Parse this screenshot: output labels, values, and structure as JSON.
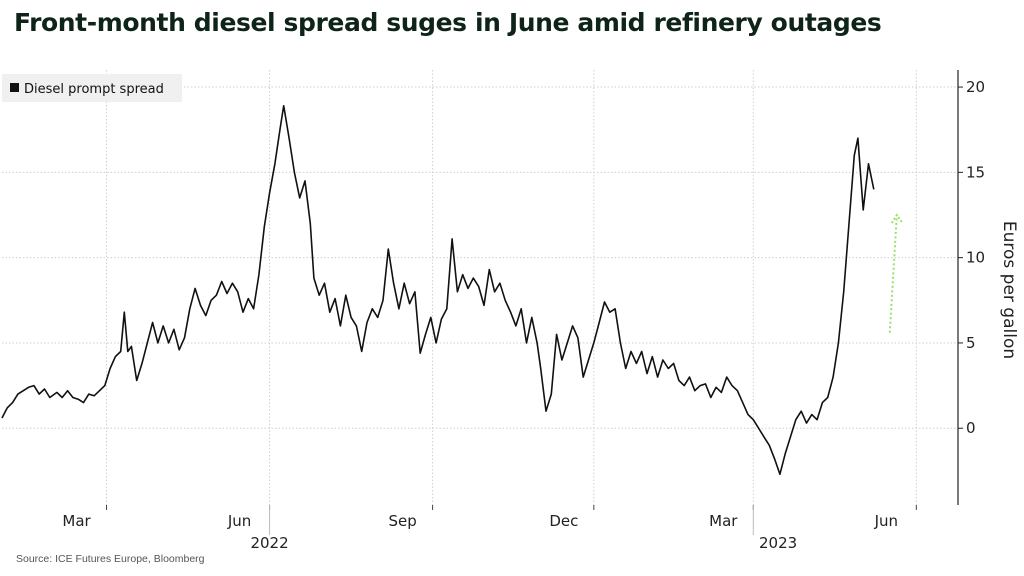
{
  "header": {
    "title": "Front-month diesel spread suges in June amid refinery outages"
  },
  "footer": {
    "source": "Source: ICE Futures Europe, Bloomberg"
  },
  "colors": {
    "line": "#111111",
    "grid": "#cfcfcf",
    "arrow": "#9be06a",
    "legend_bg": "#f0f0f0"
  },
  "chart_data": {
    "type": "line",
    "ylabel": "Euros per gallon",
    "ylim": [
      -4.5,
      21
    ],
    "yticks": [
      0,
      5,
      10,
      15,
      20
    ],
    "y_axis_side": "right",
    "grid": true,
    "legend_position": "top-left",
    "x_range": [
      "2022-01-01",
      "2023-06-20"
    ],
    "month_ticks": [
      {
        "date": "2022-03-01",
        "label": "Mar"
      },
      {
        "date": "2022-06-01",
        "label": "Jun"
      },
      {
        "date": "2022-09-01",
        "label": "Sep"
      },
      {
        "date": "2022-12-01",
        "label": "Dec"
      },
      {
        "date": "2023-03-01",
        "label": "Mar"
      },
      {
        "date": "2023-06-01",
        "label": "Jun"
      }
    ],
    "year_labels": [
      {
        "date": "2022-06-01",
        "label": "2022"
      },
      {
        "date": "2023-03-15",
        "label": "2023"
      }
    ],
    "annotation": {
      "type": "arrow",
      "from": [
        "2023-05-17",
        5.6
      ],
      "to": [
        "2023-05-21",
        12.5
      ]
    },
    "series": [
      {
        "name": "Diesel prompt spread",
        "points": [
          [
            "2022-01-01",
            0.6
          ],
          [
            "2022-01-04",
            1.2
          ],
          [
            "2022-01-07",
            1.5
          ],
          [
            "2022-01-10",
            2.0
          ],
          [
            "2022-01-13",
            2.2
          ],
          [
            "2022-01-16",
            2.4
          ],
          [
            "2022-01-19",
            2.5
          ],
          [
            "2022-01-22",
            2.0
          ],
          [
            "2022-01-25",
            2.3
          ],
          [
            "2022-01-28",
            1.8
          ],
          [
            "2022-02-01",
            2.1
          ],
          [
            "2022-02-04",
            1.8
          ],
          [
            "2022-02-07",
            2.2
          ],
          [
            "2022-02-10",
            1.8
          ],
          [
            "2022-02-13",
            1.7
          ],
          [
            "2022-02-16",
            1.5
          ],
          [
            "2022-02-19",
            2.0
          ],
          [
            "2022-02-22",
            1.9
          ],
          [
            "2022-02-25",
            2.2
          ],
          [
            "2022-02-28",
            2.5
          ],
          [
            "2022-03-03",
            3.5
          ],
          [
            "2022-03-06",
            4.2
          ],
          [
            "2022-03-09",
            4.5
          ],
          [
            "2022-03-11",
            6.8
          ],
          [
            "2022-03-13",
            4.5
          ],
          [
            "2022-03-15",
            4.8
          ],
          [
            "2022-03-18",
            2.8
          ],
          [
            "2022-03-21",
            3.8
          ],
          [
            "2022-03-24",
            5.0
          ],
          [
            "2022-03-27",
            6.2
          ],
          [
            "2022-03-30",
            5.0
          ],
          [
            "2022-04-02",
            6.0
          ],
          [
            "2022-04-05",
            5.0
          ],
          [
            "2022-04-08",
            5.8
          ],
          [
            "2022-04-11",
            4.6
          ],
          [
            "2022-04-14",
            5.3
          ],
          [
            "2022-04-17",
            7.0
          ],
          [
            "2022-04-20",
            8.2
          ],
          [
            "2022-04-23",
            7.2
          ],
          [
            "2022-04-26",
            6.6
          ],
          [
            "2022-04-29",
            7.5
          ],
          [
            "2022-05-02",
            7.8
          ],
          [
            "2022-05-05",
            8.6
          ],
          [
            "2022-05-08",
            7.9
          ],
          [
            "2022-05-11",
            8.5
          ],
          [
            "2022-05-14",
            8.0
          ],
          [
            "2022-05-17",
            6.8
          ],
          [
            "2022-05-20",
            7.6
          ],
          [
            "2022-05-23",
            7.0
          ],
          [
            "2022-05-26",
            9.0
          ],
          [
            "2022-05-29",
            11.8
          ],
          [
            "2022-06-01",
            13.8
          ],
          [
            "2022-06-04",
            15.5
          ],
          [
            "2022-06-07",
            17.6
          ],
          [
            "2022-06-09",
            18.9
          ],
          [
            "2022-06-12",
            17.0
          ],
          [
            "2022-06-15",
            15.0
          ],
          [
            "2022-06-18",
            13.5
          ],
          [
            "2022-06-21",
            14.5
          ],
          [
            "2022-06-24",
            12.0
          ],
          [
            "2022-06-26",
            8.8
          ],
          [
            "2022-06-29",
            7.8
          ],
          [
            "2022-07-02",
            8.5
          ],
          [
            "2022-07-05",
            6.8
          ],
          [
            "2022-07-08",
            7.6
          ],
          [
            "2022-07-11",
            6.0
          ],
          [
            "2022-07-14",
            7.8
          ],
          [
            "2022-07-17",
            6.5
          ],
          [
            "2022-07-20",
            6.0
          ],
          [
            "2022-07-23",
            4.5
          ],
          [
            "2022-07-26",
            6.2
          ],
          [
            "2022-07-29",
            7.0
          ],
          [
            "2022-08-01",
            6.5
          ],
          [
            "2022-08-04",
            7.5
          ],
          [
            "2022-08-07",
            10.5
          ],
          [
            "2022-08-10",
            8.5
          ],
          [
            "2022-08-13",
            7.0
          ],
          [
            "2022-08-16",
            8.5
          ],
          [
            "2022-08-19",
            7.3
          ],
          [
            "2022-08-22",
            8.0
          ],
          [
            "2022-08-25",
            4.4
          ],
          [
            "2022-08-28",
            5.5
          ],
          [
            "2022-08-31",
            6.5
          ],
          [
            "2022-09-03",
            5.0
          ],
          [
            "2022-09-06",
            6.4
          ],
          [
            "2022-09-09",
            7.0
          ],
          [
            "2022-09-12",
            11.1
          ],
          [
            "2022-09-15",
            8.0
          ],
          [
            "2022-09-18",
            9.0
          ],
          [
            "2022-09-21",
            8.2
          ],
          [
            "2022-09-24",
            8.8
          ],
          [
            "2022-09-27",
            8.3
          ],
          [
            "2022-09-30",
            7.2
          ],
          [
            "2022-10-03",
            9.3
          ],
          [
            "2022-10-06",
            8.0
          ],
          [
            "2022-10-09",
            8.5
          ],
          [
            "2022-10-12",
            7.5
          ],
          [
            "2022-10-15",
            6.8
          ],
          [
            "2022-10-18",
            6.0
          ],
          [
            "2022-10-21",
            7.0
          ],
          [
            "2022-10-24",
            5.0
          ],
          [
            "2022-10-27",
            6.5
          ],
          [
            "2022-10-30",
            5.0
          ],
          [
            "2022-11-01",
            3.5
          ],
          [
            "2022-11-04",
            1.0
          ],
          [
            "2022-11-07",
            2.0
          ],
          [
            "2022-11-10",
            5.5
          ],
          [
            "2022-11-13",
            4.0
          ],
          [
            "2022-11-16",
            5.0
          ],
          [
            "2022-11-19",
            6.0
          ],
          [
            "2022-11-22",
            5.3
          ],
          [
            "2022-11-25",
            3.0
          ],
          [
            "2022-11-28",
            4.0
          ],
          [
            "2022-12-01",
            5.0
          ],
          [
            "2022-12-04",
            6.2
          ],
          [
            "2022-12-07",
            7.4
          ],
          [
            "2022-12-10",
            6.8
          ],
          [
            "2022-12-13",
            7.0
          ],
          [
            "2022-12-16",
            5.0
          ],
          [
            "2022-12-19",
            3.5
          ],
          [
            "2022-12-22",
            4.5
          ],
          [
            "2022-12-25",
            3.8
          ],
          [
            "2022-12-28",
            4.5
          ],
          [
            "2022-12-31",
            3.2
          ],
          [
            "2023-01-03",
            4.2
          ],
          [
            "2023-01-06",
            3.0
          ],
          [
            "2023-01-09",
            4.0
          ],
          [
            "2023-01-12",
            3.5
          ],
          [
            "2023-01-15",
            3.8
          ],
          [
            "2023-01-18",
            2.8
          ],
          [
            "2023-01-21",
            2.5
          ],
          [
            "2023-01-24",
            3.0
          ],
          [
            "2023-01-27",
            2.2
          ],
          [
            "2023-01-30",
            2.5
          ],
          [
            "2023-02-02",
            2.6
          ],
          [
            "2023-02-05",
            1.8
          ],
          [
            "2023-02-08",
            2.4
          ],
          [
            "2023-02-11",
            2.1
          ],
          [
            "2023-02-14",
            3.0
          ],
          [
            "2023-02-17",
            2.5
          ],
          [
            "2023-02-20",
            2.2
          ],
          [
            "2023-02-23",
            1.5
          ],
          [
            "2023-02-26",
            0.8
          ],
          [
            "2023-03-01",
            0.5
          ],
          [
            "2023-03-04",
            0.0
          ],
          [
            "2023-03-07",
            -0.5
          ],
          [
            "2023-03-10",
            -1.0
          ],
          [
            "2023-03-13",
            -1.8
          ],
          [
            "2023-03-16",
            -2.7
          ],
          [
            "2023-03-19",
            -1.5
          ],
          [
            "2023-03-22",
            -0.5
          ],
          [
            "2023-03-25",
            0.5
          ],
          [
            "2023-03-28",
            1.0
          ],
          [
            "2023-03-31",
            0.3
          ],
          [
            "2023-04-03",
            0.8
          ],
          [
            "2023-04-06",
            0.5
          ],
          [
            "2023-04-09",
            1.5
          ],
          [
            "2023-04-12",
            1.8
          ],
          [
            "2023-04-15",
            3.0
          ],
          [
            "2023-04-18",
            5.0
          ],
          [
            "2023-04-21",
            8.0
          ],
          [
            "2023-04-24",
            12.0
          ],
          [
            "2023-04-27",
            16.0
          ],
          [
            "2023-04-29",
            17.0
          ],
          [
            "2023-05-02",
            12.8
          ],
          [
            "2023-05-05",
            15.5
          ],
          [
            "2023-05-08",
            14.0
          ]
        ]
      }
    ]
  }
}
